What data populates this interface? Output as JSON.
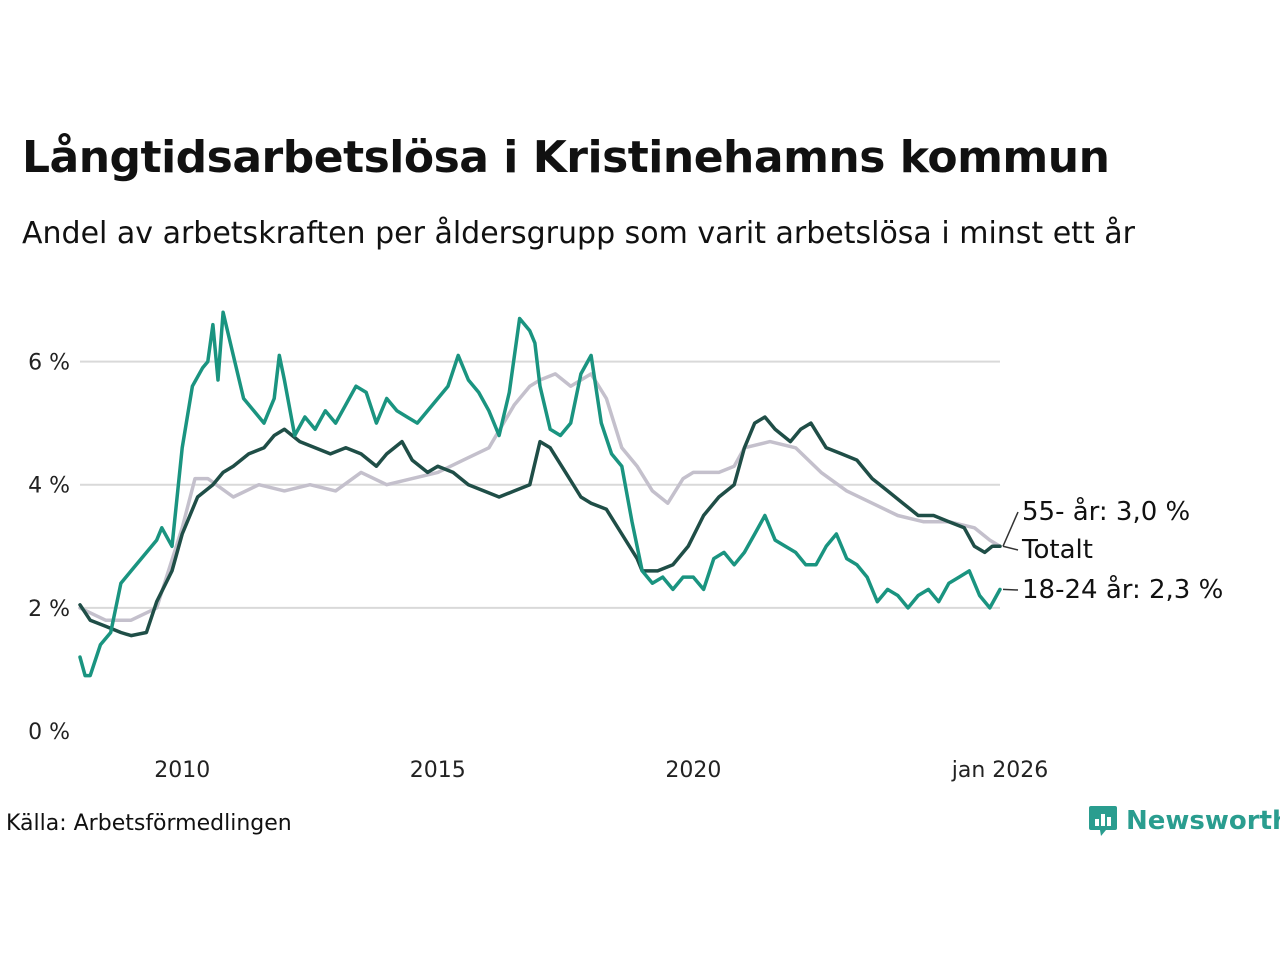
{
  "title": "Långtidsarbetslösa i Kristinehamns kommun",
  "subtitle": "Andel av arbetskraften per åldersgrupp som varit arbetslösa i minst ett år",
  "source": "Källa: Arbetsförmedlingen",
  "brand": "Newsworthy",
  "colors": {
    "totalt": "#1f4e47",
    "young": "#1a9480",
    "old": "#c4c0cc",
    "grid": "#d9d9d9",
    "brand": "#2a9d8f"
  },
  "chart_data": {
    "type": "line",
    "title": "Långtidsarbetslösa i Kristinehamns kommun",
    "xlabel": "",
    "ylabel": "",
    "ylim": [
      0,
      7
    ],
    "xlim": [
      2008.0,
      2026.0
    ],
    "y_ticks": [
      {
        "value": 0,
        "label": "0 %"
      },
      {
        "value": 2,
        "label": "2 %"
      },
      {
        "value": 4,
        "label": "4 %"
      },
      {
        "value": 6,
        "label": "6 %"
      }
    ],
    "x_ticks": [
      {
        "value": 2010.0,
        "label": "2010"
      },
      {
        "value": 2015.0,
        "label": "2015"
      },
      {
        "value": 2020.0,
        "label": "2020"
      },
      {
        "value": 2026.0,
        "label": "jan 2026"
      }
    ],
    "grid": true,
    "series": [
      {
        "name": "55- år",
        "label": "55- år: 3,0 %",
        "color_key": "old",
        "points": [
          [
            2008.0,
            2.0
          ],
          [
            2008.5,
            1.8
          ],
          [
            2009.0,
            1.8
          ],
          [
            2009.5,
            2.0
          ],
          [
            2010.0,
            3.3
          ],
          [
            2010.25,
            4.1
          ],
          [
            2010.5,
            4.1
          ],
          [
            2011.0,
            3.8
          ],
          [
            2011.5,
            4.0
          ],
          [
            2012.0,
            3.9
          ],
          [
            2012.5,
            4.0
          ],
          [
            2013.0,
            3.9
          ],
          [
            2013.5,
            4.2
          ],
          [
            2014.0,
            4.0
          ],
          [
            2014.5,
            4.1
          ],
          [
            2015.0,
            4.2
          ],
          [
            2015.5,
            4.4
          ],
          [
            2016.0,
            4.6
          ],
          [
            2016.5,
            5.3
          ],
          [
            2016.8,
            5.6
          ],
          [
            2017.0,
            5.7
          ],
          [
            2017.3,
            5.8
          ],
          [
            2017.6,
            5.6
          ],
          [
            2018.0,
            5.8
          ],
          [
            2018.3,
            5.4
          ],
          [
            2018.6,
            4.6
          ],
          [
            2018.9,
            4.3
          ],
          [
            2019.2,
            3.9
          ],
          [
            2019.5,
            3.7
          ],
          [
            2019.8,
            4.1
          ],
          [
            2020.0,
            4.2
          ],
          [
            2020.5,
            4.2
          ],
          [
            2020.8,
            4.3
          ],
          [
            2021.0,
            4.6
          ],
          [
            2021.5,
            4.7
          ],
          [
            2022.0,
            4.6
          ],
          [
            2022.5,
            4.2
          ],
          [
            2023.0,
            3.9
          ],
          [
            2023.5,
            3.7
          ],
          [
            2024.0,
            3.5
          ],
          [
            2024.5,
            3.4
          ],
          [
            2025.0,
            3.4
          ],
          [
            2025.5,
            3.3
          ],
          [
            2025.8,
            3.1
          ],
          [
            2026.0,
            3.0
          ]
        ]
      },
      {
        "name": "Totalt",
        "label": "Totalt",
        "color_key": "totalt",
        "points": [
          [
            2008.0,
            2.05
          ],
          [
            2008.2,
            1.8
          ],
          [
            2008.5,
            1.7
          ],
          [
            2008.8,
            1.6
          ],
          [
            2009.0,
            1.55
          ],
          [
            2009.3,
            1.6
          ],
          [
            2009.5,
            2.1
          ],
          [
            2009.8,
            2.6
          ],
          [
            2010.0,
            3.2
          ],
          [
            2010.3,
            3.8
          ],
          [
            2010.6,
            4.0
          ],
          [
            2010.8,
            4.2
          ],
          [
            2011.0,
            4.3
          ],
          [
            2011.3,
            4.5
          ],
          [
            2011.6,
            4.6
          ],
          [
            2011.8,
            4.8
          ],
          [
            2012.0,
            4.9
          ],
          [
            2012.3,
            4.7
          ],
          [
            2012.6,
            4.6
          ],
          [
            2012.9,
            4.5
          ],
          [
            2013.2,
            4.6
          ],
          [
            2013.5,
            4.5
          ],
          [
            2013.8,
            4.3
          ],
          [
            2014.0,
            4.5
          ],
          [
            2014.3,
            4.7
          ],
          [
            2014.5,
            4.4
          ],
          [
            2014.8,
            4.2
          ],
          [
            2015.0,
            4.3
          ],
          [
            2015.3,
            4.2
          ],
          [
            2015.6,
            4.0
          ],
          [
            2015.9,
            3.9
          ],
          [
            2016.2,
            3.8
          ],
          [
            2016.5,
            3.9
          ],
          [
            2016.8,
            4.0
          ],
          [
            2017.0,
            4.7
          ],
          [
            2017.2,
            4.6
          ],
          [
            2017.5,
            4.2
          ],
          [
            2017.8,
            3.8
          ],
          [
            2018.0,
            3.7
          ],
          [
            2018.3,
            3.6
          ],
          [
            2018.6,
            3.2
          ],
          [
            2018.9,
            2.8
          ],
          [
            2019.0,
            2.6
          ],
          [
            2019.3,
            2.6
          ],
          [
            2019.6,
            2.7
          ],
          [
            2019.9,
            3.0
          ],
          [
            2020.2,
            3.5
          ],
          [
            2020.5,
            3.8
          ],
          [
            2020.8,
            4.0
          ],
          [
            2021.0,
            4.6
          ],
          [
            2021.2,
            5.0
          ],
          [
            2021.4,
            5.1
          ],
          [
            2021.6,
            4.9
          ],
          [
            2021.9,
            4.7
          ],
          [
            2022.1,
            4.9
          ],
          [
            2022.3,
            5.0
          ],
          [
            2022.6,
            4.6
          ],
          [
            2022.9,
            4.5
          ],
          [
            2023.2,
            4.4
          ],
          [
            2023.5,
            4.1
          ],
          [
            2023.8,
            3.9
          ],
          [
            2024.1,
            3.7
          ],
          [
            2024.4,
            3.5
          ],
          [
            2024.7,
            3.5
          ],
          [
            2025.0,
            3.4
          ],
          [
            2025.3,
            3.3
          ],
          [
            2025.5,
            3.0
          ],
          [
            2025.7,
            2.9
          ],
          [
            2025.85,
            3.0
          ],
          [
            2026.0,
            3.0
          ]
        ]
      },
      {
        "name": "18-24 år",
        "label": "18-24 år: 2,3 %",
        "color_key": "young",
        "points": [
          [
            2008.0,
            1.2
          ],
          [
            2008.1,
            0.9
          ],
          [
            2008.2,
            0.9
          ],
          [
            2008.4,
            1.4
          ],
          [
            2008.6,
            1.6
          ],
          [
            2008.8,
            2.4
          ],
          [
            2009.0,
            2.6
          ],
          [
            2009.2,
            2.8
          ],
          [
            2009.4,
            3.0
          ],
          [
            2009.5,
            3.1
          ],
          [
            2009.6,
            3.3
          ],
          [
            2009.8,
            3.0
          ],
          [
            2010.0,
            4.6
          ],
          [
            2010.2,
            5.6
          ],
          [
            2010.4,
            5.9
          ],
          [
            2010.5,
            6.0
          ],
          [
            2010.6,
            6.6
          ],
          [
            2010.7,
            5.7
          ],
          [
            2010.8,
            6.8
          ],
          [
            2011.0,
            6.1
          ],
          [
            2011.2,
            5.4
          ],
          [
            2011.4,
            5.2
          ],
          [
            2011.6,
            5.0
          ],
          [
            2011.8,
            5.4
          ],
          [
            2011.9,
            6.1
          ],
          [
            2012.0,
            5.7
          ],
          [
            2012.2,
            4.8
          ],
          [
            2012.4,
            5.1
          ],
          [
            2012.6,
            4.9
          ],
          [
            2012.8,
            5.2
          ],
          [
            2013.0,
            5.0
          ],
          [
            2013.2,
            5.3
          ],
          [
            2013.4,
            5.6
          ],
          [
            2013.6,
            5.5
          ],
          [
            2013.8,
            5.0
          ],
          [
            2014.0,
            5.4
          ],
          [
            2014.2,
            5.2
          ],
          [
            2014.4,
            5.1
          ],
          [
            2014.6,
            5.0
          ],
          [
            2014.8,
            5.2
          ],
          [
            2015.0,
            5.4
          ],
          [
            2015.2,
            5.6
          ],
          [
            2015.4,
            6.1
          ],
          [
            2015.6,
            5.7
          ],
          [
            2015.8,
            5.5
          ],
          [
            2016.0,
            5.2
          ],
          [
            2016.2,
            4.8
          ],
          [
            2016.4,
            5.5
          ],
          [
            2016.6,
            6.7
          ],
          [
            2016.8,
            6.5
          ],
          [
            2016.9,
            6.3
          ],
          [
            2017.0,
            5.6
          ],
          [
            2017.2,
            4.9
          ],
          [
            2017.4,
            4.8
          ],
          [
            2017.6,
            5.0
          ],
          [
            2017.8,
            5.8
          ],
          [
            2018.0,
            6.1
          ],
          [
            2018.2,
            5.0
          ],
          [
            2018.4,
            4.5
          ],
          [
            2018.6,
            4.3
          ],
          [
            2018.8,
            3.4
          ],
          [
            2019.0,
            2.6
          ],
          [
            2019.2,
            2.4
          ],
          [
            2019.4,
            2.5
          ],
          [
            2019.6,
            2.3
          ],
          [
            2019.8,
            2.5
          ],
          [
            2020.0,
            2.5
          ],
          [
            2020.2,
            2.3
          ],
          [
            2020.4,
            2.8
          ],
          [
            2020.6,
            2.9
          ],
          [
            2020.8,
            2.7
          ],
          [
            2021.0,
            2.9
          ],
          [
            2021.2,
            3.2
          ],
          [
            2021.4,
            3.5
          ],
          [
            2021.6,
            3.1
          ],
          [
            2021.8,
            3.0
          ],
          [
            2022.0,
            2.9
          ],
          [
            2022.2,
            2.7
          ],
          [
            2022.4,
            2.7
          ],
          [
            2022.6,
            3.0
          ],
          [
            2022.8,
            3.2
          ],
          [
            2023.0,
            2.8
          ],
          [
            2023.2,
            2.7
          ],
          [
            2023.4,
            2.5
          ],
          [
            2023.6,
            2.1
          ],
          [
            2023.8,
            2.3
          ],
          [
            2024.0,
            2.2
          ],
          [
            2024.2,
            2.0
          ],
          [
            2024.4,
            2.2
          ],
          [
            2024.6,
            2.3
          ],
          [
            2024.8,
            2.1
          ],
          [
            2025.0,
            2.4
          ],
          [
            2025.2,
            2.5
          ],
          [
            2025.4,
            2.6
          ],
          [
            2025.6,
            2.2
          ],
          [
            2025.8,
            2.0
          ],
          [
            2026.0,
            2.3
          ]
        ]
      }
    ]
  }
}
